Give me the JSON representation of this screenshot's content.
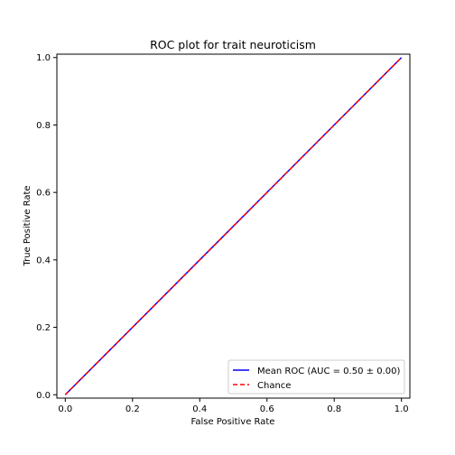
{
  "chart_data": {
    "type": "line",
    "title": "ROC plot for trait neuroticism",
    "xlabel": "False Positive Rate",
    "ylabel": "True Positive Rate",
    "xlim": [
      -0.025,
      1.025
    ],
    "ylim": [
      -0.01,
      1.01
    ],
    "xticks": [
      0.0,
      0.2,
      0.4,
      0.6,
      0.8,
      1.0
    ],
    "xtick_labels": [
      "0.0",
      "0.2",
      "0.4",
      "0.6",
      "0.8",
      "1.0"
    ],
    "yticks": [
      0.0,
      0.2,
      0.4,
      0.6,
      0.8,
      1.0
    ],
    "ytick_labels": [
      "0.0",
      "0.2",
      "0.4",
      "0.6",
      "0.8",
      "1.0"
    ],
    "grid": false,
    "legend_position": "lower-right",
    "series": [
      {
        "name": "Mean ROC (AUC = 0.50 ± 0.00)",
        "color": "#0000ff",
        "style": "solid",
        "x": [
          0,
          1
        ],
        "y": [
          0,
          1
        ]
      },
      {
        "name": "Chance",
        "color": "#ff0000",
        "style": "dashed",
        "x": [
          0,
          1
        ],
        "y": [
          0,
          1
        ]
      }
    ]
  }
}
